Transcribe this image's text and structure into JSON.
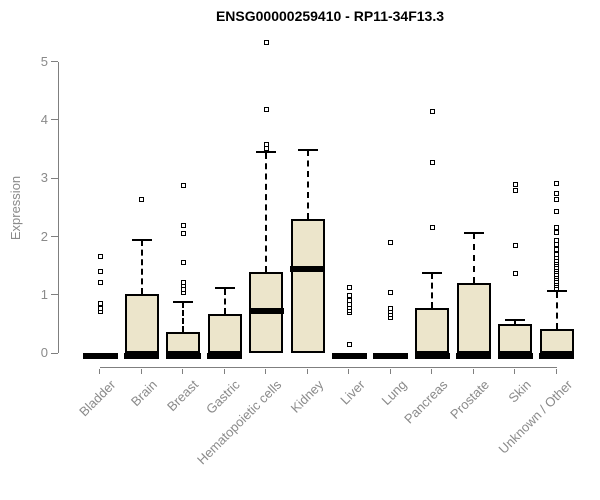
{
  "header": {
    "title": "ENSG00000259410 - RP11-34F13.3"
  },
  "colors": {
    "box_fill": "#ece5cb",
    "box_border": "#000000",
    "median": "#000000",
    "axis_line": "#7f7f7f",
    "label_text": "#8a8a8a",
    "title_text": "#000000",
    "outlier_fill": "#ffffff"
  },
  "chart_data": {
    "type": "boxplot",
    "title": "ENSG00000259410 - RP11-34F13.3",
    "xlabel": "",
    "ylabel": "Expression",
    "ylim": [
      0,
      5
    ],
    "yticks": [
      0,
      1,
      2,
      3,
      4,
      5
    ],
    "grid": false,
    "legend": "none",
    "categories": [
      "Bladder",
      "Brain",
      "Breast",
      "Gastric",
      "Hematopoietic cells",
      "Kidney",
      "Liver",
      "Lung",
      "Pancreas",
      "Prostate",
      "Skin",
      "Unknown / Other"
    ],
    "series": [
      {
        "category": "Bladder",
        "whisker_low": 0,
        "q1": 0,
        "median": 0,
        "q3": 0,
        "whisker_high": 0,
        "outliers": [
          0.72,
          0.76,
          0.85,
          1.22,
          1.4,
          1.66
        ]
      },
      {
        "category": "Brain",
        "whisker_low": 0,
        "q1": 0,
        "median": 0,
        "q3": 1.02,
        "whisker_high": 1.94,
        "outliers": [
          2.64
        ]
      },
      {
        "category": "Breast",
        "whisker_low": 0,
        "q1": 0,
        "median": 0,
        "q3": 0.37,
        "whisker_high": 0.88,
        "outliers": [
          1.04,
          1.1,
          1.16,
          1.22,
          1.55,
          2.06,
          2.2,
          2.87
        ]
      },
      {
        "category": "Gastric",
        "whisker_low": 0,
        "q1": 0,
        "median": 0,
        "q3": 0.68,
        "whisker_high": 1.11,
        "outliers": []
      },
      {
        "category": "Hematopoietic cells",
        "whisker_low": 0,
        "q1": 0,
        "median": 0.73,
        "q3": 1.4,
        "whisker_high": 3.44,
        "outliers": [
          3.52,
          3.58,
          4.19,
          5.33
        ]
      },
      {
        "category": "Kidney",
        "whisker_low": 0,
        "q1": 0,
        "median": 1.45,
        "q3": 2.31,
        "whisker_high": 3.48,
        "outliers": []
      },
      {
        "category": "Liver",
        "whisker_low": 0,
        "q1": 0,
        "median": 0,
        "q3": 0,
        "whisker_high": 0,
        "outliers": [
          0.15,
          0.7,
          0.74,
          0.79,
          0.84,
          0.91,
          0.99,
          1.13
        ]
      },
      {
        "category": "Lung",
        "whisker_low": 0,
        "q1": 0,
        "median": 0,
        "q3": 0,
        "whisker_high": 0,
        "outliers": [
          0.62,
          0.67,
          0.72,
          0.77,
          1.05,
          1.9
        ]
      },
      {
        "category": "Pancreas",
        "whisker_low": 0,
        "q1": 0,
        "median": 0,
        "q3": 0.78,
        "whisker_high": 1.37,
        "outliers": [
          2.16,
          3.28,
          4.15
        ]
      },
      {
        "category": "Prostate",
        "whisker_low": 0,
        "q1": 0,
        "median": 0,
        "q3": 1.2,
        "whisker_high": 2.06,
        "outliers": []
      },
      {
        "category": "Skin",
        "whisker_low": 0,
        "q1": 0,
        "median": 0,
        "q3": 0.51,
        "whisker_high": 0.57,
        "outliers": [
          1.37,
          1.85,
          2.79,
          2.89
        ]
      },
      {
        "category": "Unknown / Other",
        "whisker_low": 0,
        "q1": 0,
        "median": 0,
        "q3": 0.42,
        "whisker_high": 1.06,
        "outliers": [
          1.12,
          1.16,
          1.2,
          1.24,
          1.28,
          1.32,
          1.36,
          1.4,
          1.44,
          1.48,
          1.52,
          1.56,
          1.6,
          1.65,
          1.7,
          1.78,
          1.86,
          1.94,
          2.08,
          2.15,
          2.43,
          2.63,
          2.74,
          2.92
        ]
      }
    ]
  }
}
